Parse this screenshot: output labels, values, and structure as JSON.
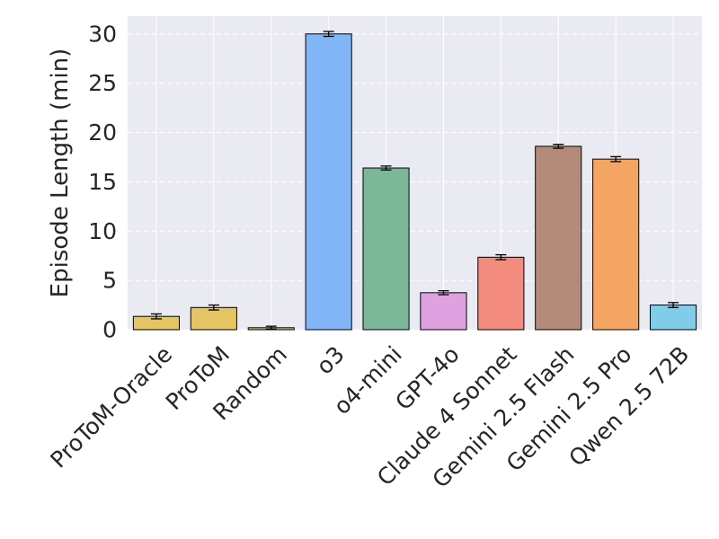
{
  "chart_data": {
    "type": "bar",
    "title": "",
    "xlabel": "",
    "ylabel": "Episode Length (min)",
    "ylim": [
      0,
      31.8
    ],
    "yticks": [
      0,
      5,
      10,
      15,
      20,
      25,
      30
    ],
    "grid": true,
    "categories": [
      "ProToM-Oracle",
      "ProToM",
      "Random",
      "o3",
      "o4-mini",
      "GPT-4o",
      "Claude 4 Sonnet",
      "Gemini 2.5 Flash",
      "Gemini 2.5 Pro",
      "Qwen 2.5 72B"
    ],
    "values": [
      1.35,
      2.25,
      0.2,
      30.0,
      16.4,
      3.75,
      7.35,
      18.6,
      17.3,
      2.5
    ],
    "errors": [
      0.25,
      0.25,
      0.15,
      0.25,
      0.2,
      0.2,
      0.25,
      0.2,
      0.25,
      0.25
    ],
    "colors": [
      "#e5c464",
      "#e5c464",
      "#e5c464",
      "#82b4f8",
      "#7bb89a",
      "#dea2e0",
      "#f38c7f",
      "#b48a7a",
      "#f4a564",
      "#81cde9"
    ],
    "background": "#eaeaf2",
    "grid_color": "#ffffff"
  }
}
